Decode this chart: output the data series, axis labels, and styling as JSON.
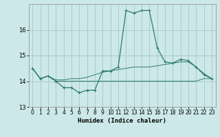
{
  "xlabel": "Humidex (Indice chaleur)",
  "ylabel": "",
  "bg_color": "#cce8e8",
  "grid_color": "#aacccc",
  "line_color": "#2d7a6a",
  "xlim": [
    -0.5,
    23.5
  ],
  "ylim": [
    13.0,
    17.0
  ],
  "yticks": [
    13,
    14,
    15,
    16
  ],
  "xticks": [
    0,
    1,
    2,
    3,
    4,
    5,
    6,
    7,
    8,
    9,
    10,
    11,
    12,
    13,
    14,
    15,
    16,
    17,
    18,
    19,
    20,
    21,
    22,
    23
  ],
  "series1_x": [
    0,
    1,
    2,
    3,
    4,
    5,
    6,
    7,
    8,
    9,
    10,
    11,
    12,
    13,
    14,
    15,
    16,
    17,
    18,
    19,
    20,
    21,
    22,
    23
  ],
  "series1_y": [
    14.5,
    14.1,
    14.2,
    14.0,
    13.75,
    13.75,
    13.55,
    13.65,
    13.65,
    14.4,
    14.4,
    14.55,
    16.75,
    16.65,
    16.75,
    16.75,
    15.3,
    14.75,
    14.7,
    14.85,
    14.8,
    14.55,
    14.25,
    14.1
  ],
  "series2_x": [
    0,
    1,
    2,
    3,
    4,
    5,
    6,
    7,
    8,
    9,
    10,
    11,
    12,
    13,
    14,
    15,
    16,
    17,
    18,
    19,
    20,
    21,
    22,
    23
  ],
  "series2_y": [
    14.5,
    14.1,
    14.2,
    14.0,
    14.0,
    14.0,
    14.0,
    14.0,
    14.0,
    14.0,
    14.0,
    14.0,
    14.0,
    14.0,
    14.0,
    14.0,
    14.0,
    14.0,
    14.0,
    14.0,
    14.0,
    14.0,
    14.1,
    14.1
  ],
  "series3_x": [
    0,
    1,
    2,
    3,
    4,
    5,
    6,
    7,
    8,
    9,
    10,
    11,
    12,
    13,
    14,
    15,
    16,
    17,
    18,
    19,
    20,
    21,
    22,
    23
  ],
  "series3_y": [
    14.5,
    14.1,
    14.2,
    14.05,
    14.05,
    14.1,
    14.1,
    14.15,
    14.25,
    14.35,
    14.4,
    14.45,
    14.5,
    14.55,
    14.55,
    14.55,
    14.6,
    14.65,
    14.7,
    14.75,
    14.75,
    14.55,
    14.3,
    14.1
  ]
}
